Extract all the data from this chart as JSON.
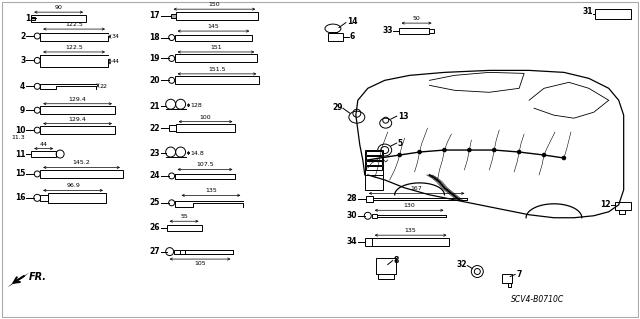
{
  "title": "",
  "bg_color": "#ffffff",
  "diagram_code": "SCV4-B0710C",
  "border_color": "#cccccc"
}
